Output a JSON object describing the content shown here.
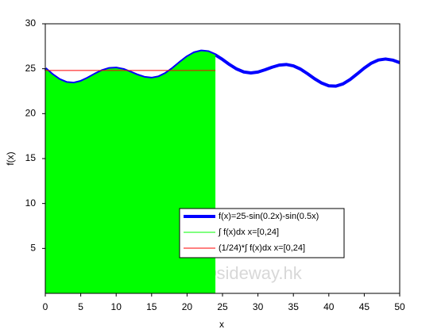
{
  "chart_data": {
    "type": "line",
    "xlabel": "x",
    "ylabel": "f(x)",
    "annotation": "©sideway.hk",
    "xlim": [
      0,
      50
    ],
    "ylim": [
      0,
      30
    ],
    "xticks": [
      0,
      5,
      10,
      15,
      20,
      25,
      30,
      35,
      40,
      45,
      50
    ],
    "yticks": [
      5,
      10,
      15,
      20,
      25,
      30
    ],
    "legend": "lower-right",
    "series": [
      {
        "name": "f(x)=25-sin(0.2x)-sin(0.5x)",
        "color": "#0000ff",
        "kind": "line",
        "width": 4,
        "x": [
          0,
          1,
          2,
          3,
          4,
          5,
          6,
          7,
          8,
          9,
          10,
          11,
          12,
          13,
          14,
          15,
          16,
          17,
          18,
          19,
          20,
          21,
          22,
          23,
          24,
          25,
          26,
          27,
          28,
          29,
          30,
          31,
          32,
          33,
          34,
          35,
          36,
          37,
          38,
          39,
          40,
          41,
          42,
          43,
          44,
          45,
          46,
          47,
          48,
          49,
          50
        ],
        "values": [
          25,
          24.32,
          23.77,
          23.44,
          23.37,
          23.56,
          23.93,
          24.37,
          24.76,
          25.0,
          25.05,
          24.9,
          24.6,
          24.27,
          24.01,
          23.92,
          24.07,
          24.46,
          25.03,
          25.69,
          26.3,
          26.75,
          26.95,
          26.87,
          26.53,
          26.03,
          25.46,
          24.97,
          24.64,
          24.53,
          24.63,
          24.88,
          25.17,
          25.4,
          25.47,
          25.32,
          24.96,
          24.44,
          23.88,
          23.4,
          23.1,
          23.06,
          23.31,
          23.8,
          24.42,
          25.07,
          25.62,
          25.97,
          26.08,
          25.96,
          25.68
        ]
      },
      {
        "name": "∫ f(x)dx  x=[0,24]",
        "color": "#00ff00",
        "kind": "area",
        "x": [
          0,
          1,
          2,
          3,
          4,
          5,
          6,
          7,
          8,
          9,
          10,
          11,
          12,
          13,
          14,
          15,
          16,
          17,
          18,
          19,
          20,
          21,
          22,
          23,
          24
        ],
        "values": [
          25,
          24.32,
          23.77,
          23.44,
          23.37,
          23.56,
          23.93,
          24.37,
          24.76,
          25.0,
          25.05,
          24.9,
          24.6,
          24.27,
          24.01,
          23.92,
          24.07,
          24.46,
          25.03,
          25.69,
          26.3,
          26.75,
          26.95,
          26.87,
          26.53
        ]
      },
      {
        "name": "(1/24)*∫ f(x)dx  x=[0,24]",
        "color": "#ff0000",
        "kind": "line",
        "width": 1,
        "x": [
          0,
          24
        ],
        "values": [
          24.8,
          24.8
        ]
      }
    ]
  }
}
